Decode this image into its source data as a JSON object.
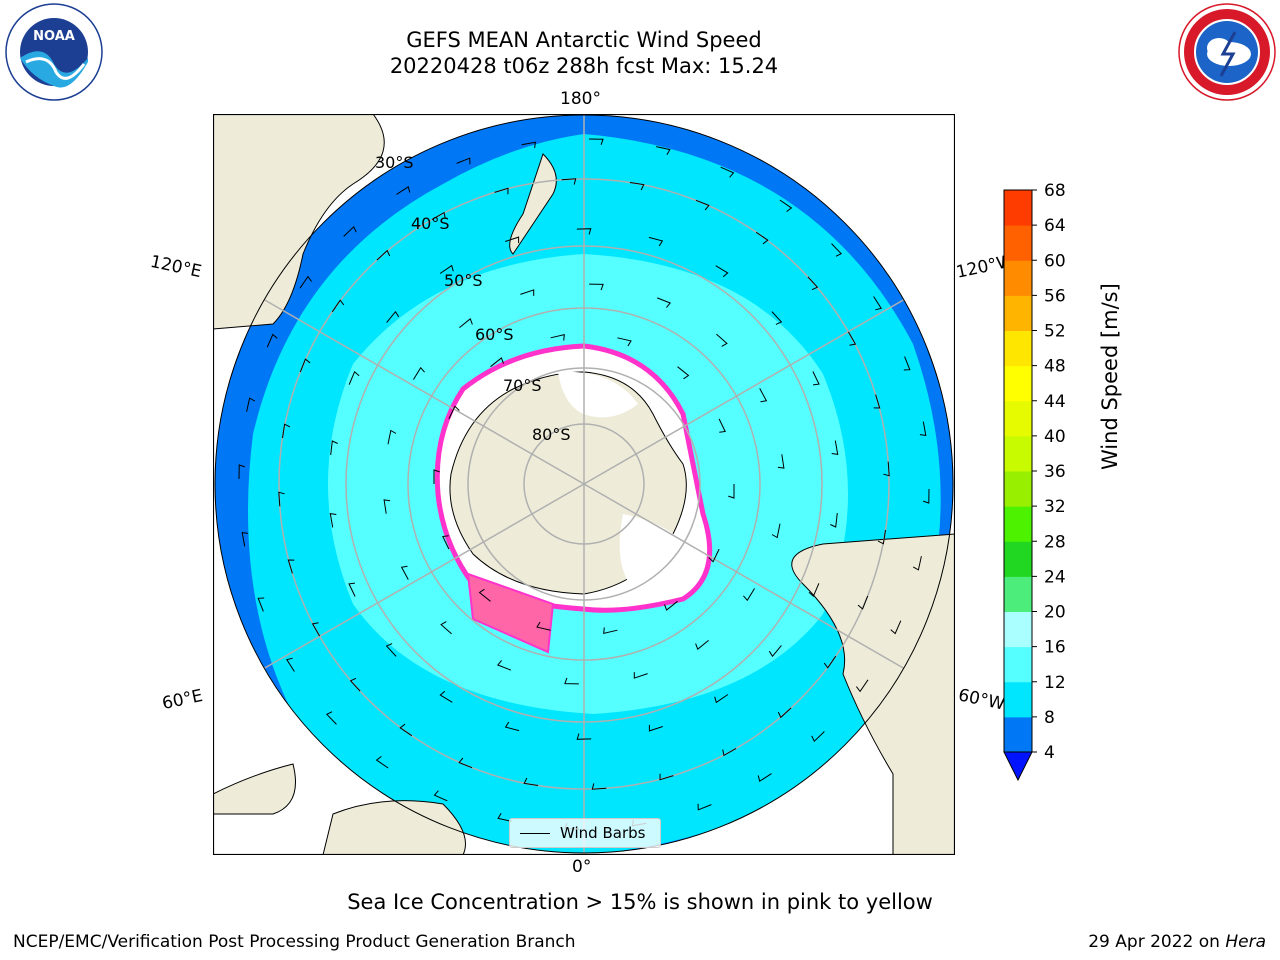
{
  "title": {
    "line1": "GEFS MEAN Antarctic Wind Speed",
    "line2": "20220428 t06z 288h fcst   Max: 15.24"
  },
  "map": {
    "projection": "south-polar-stereographic",
    "longitude_labels": {
      "top": "180°",
      "bottom": "0°",
      "upper_left": "120°E",
      "upper_right": "120°W",
      "lower_left": "60°E",
      "lower_right": "60°W"
    },
    "latitude_labels": [
      "30°S",
      "40°S",
      "50°S",
      "60°S",
      "70°S",
      "80°S"
    ],
    "colors": {
      "land": "#eeecd9",
      "ice_sheet": "#ffffff",
      "ocean_4_8": "#0078f5",
      "ocean_8_12": "#00e6ff",
      "ocean_12_16": "#55ffff",
      "sea_ice_edge": "#ff33cc",
      "graticule": "#b0b0b0"
    }
  },
  "colorbar": {
    "ticks": [
      "4",
      "8",
      "12",
      "16",
      "20",
      "24",
      "28",
      "32",
      "36",
      "40",
      "44",
      "48",
      "52",
      "56",
      "60",
      "64",
      "68"
    ],
    "colors": [
      "#0078f5",
      "#00e6ff",
      "#55ffff",
      "#aaffff",
      "#4ded7b",
      "#22d722",
      "#4df200",
      "#98f000",
      "#c8fa00",
      "#e6fa00",
      "#ffff00",
      "#ffe600",
      "#ffb400",
      "#ff8c00",
      "#ff6000",
      "#ff3c00",
      "#ff0000"
    ],
    "under_color": "#0014ff",
    "label": "Wind Speed [m/s]"
  },
  "legend": {
    "label": "Wind Barbs"
  },
  "subcaption": "Sea Ice Concentration > 15% is shown in pink to yellow",
  "footer": {
    "left": "NCEP/EMC/Verification Post Processing Product Generation Branch",
    "right_prefix": "29 Apr 2022 on ",
    "right_machine": "Hera"
  },
  "logos": {
    "left": "noaa-logo",
    "right": "nws-logo"
  }
}
